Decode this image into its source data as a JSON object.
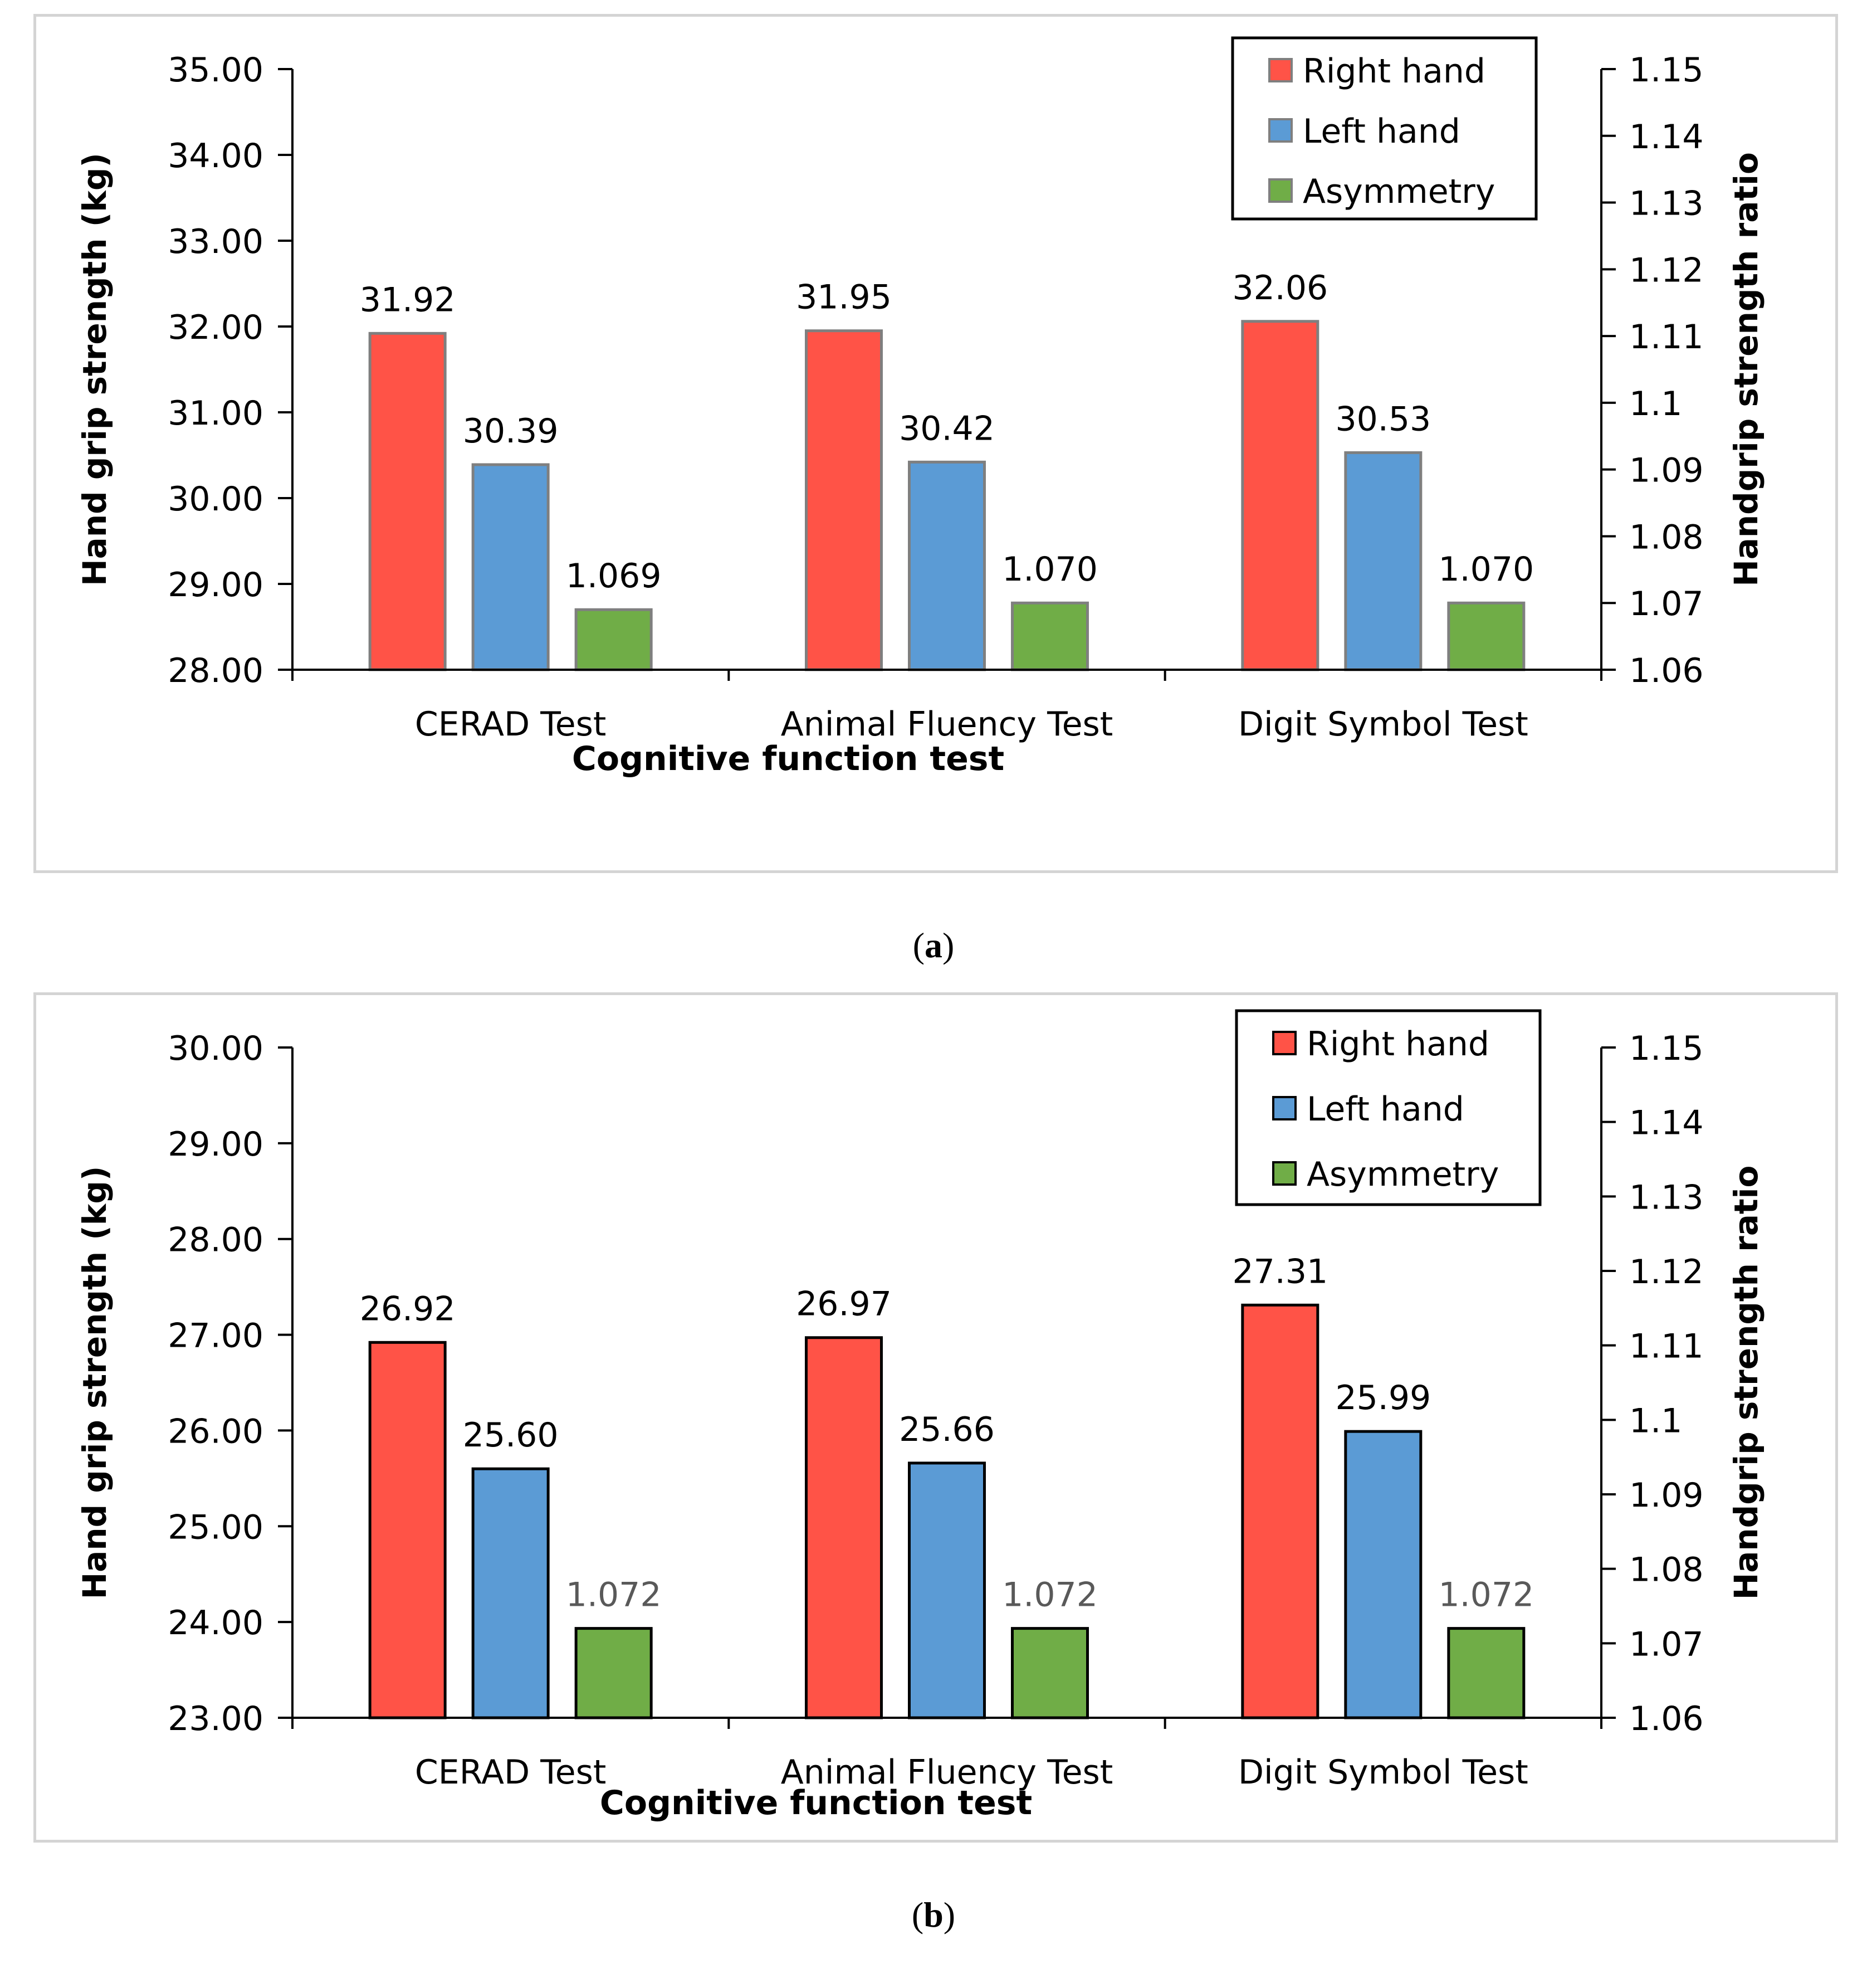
{
  "colors": {
    "right": "#ff5347",
    "left": "#5b9bd5",
    "asym": "#70ad47",
    "axis": "#000000",
    "frame": "#d4d4d4"
  },
  "panels": [
    {
      "caption": "(a)",
      "caption_letter": "a",
      "chart_data": {
        "type": "bar",
        "categories": [
          "CERAD Test",
          "Animal Fluency Test",
          "Digit Symbol Test"
        ],
        "series": [
          {
            "name": "Right hand",
            "axis": "left",
            "values": [
              31.92,
              31.95,
              32.06
            ],
            "labels": [
              "31.92",
              "31.95",
              "32.06"
            ]
          },
          {
            "name": "Left hand",
            "axis": "left",
            "values": [
              30.39,
              30.42,
              30.53
            ],
            "labels": [
              "30.39",
              "30.42",
              "30.53"
            ]
          },
          {
            "name": "Asymmetry",
            "axis": "right",
            "values": [
              1.069,
              1.07,
              1.07
            ],
            "labels": [
              "1.069",
              "1.070",
              "1.070"
            ]
          }
        ],
        "xlabel": "Cognitive function test",
        "ylabel": "Hand grip strength (kg)",
        "y2label": "Handgrip strength ratio",
        "ylim": [
          28,
          35
        ],
        "y2lim": [
          1.06,
          1.15
        ],
        "yticks": [
          "28.00",
          "29.00",
          "30.00",
          "31.00",
          "32.00",
          "33.00",
          "34.00",
          "35.00"
        ],
        "y2ticks": [
          "1.06",
          "1.07",
          "1.08",
          "1.09",
          "1.1",
          "1.11",
          "1.12",
          "1.13",
          "1.14",
          "1.15"
        ],
        "legend": "top-right"
      }
    },
    {
      "caption": "(b)",
      "caption_letter": "b",
      "chart_data": {
        "type": "bar",
        "categories": [
          "CERAD Test",
          "Animal Fluency Test",
          "Digit Symbol Test"
        ],
        "series": [
          {
            "name": "Right hand",
            "axis": "left",
            "values": [
              26.92,
              26.97,
              27.31
            ],
            "labels": [
              "26.92",
              "26.97",
              "27.31"
            ]
          },
          {
            "name": "Left hand",
            "axis": "left",
            "values": [
              25.6,
              25.66,
              25.99
            ],
            "labels": [
              "25.60",
              "25.66",
              "25.99"
            ]
          },
          {
            "name": "Asymmetry",
            "axis": "right",
            "values": [
              1.072,
              1.072,
              1.072
            ],
            "labels": [
              "1.072",
              "1.072",
              "1.072"
            ]
          }
        ],
        "xlabel": "Cognitive function test",
        "ylabel": "Hand grip strength (kg)",
        "y2label": "Handgrip strength ratio",
        "ylim": [
          23,
          30
        ],
        "y2lim": [
          1.06,
          1.15
        ],
        "yticks": [
          "23.00",
          "24.00",
          "25.00",
          "26.00",
          "27.00",
          "28.00",
          "29.00",
          "30.00"
        ],
        "y2ticks": [
          "1.06",
          "1.07",
          "1.08",
          "1.09",
          "1.1",
          "1.11",
          "1.12",
          "1.13",
          "1.14",
          "1.15"
        ],
        "legend": "top-right"
      }
    }
  ]
}
